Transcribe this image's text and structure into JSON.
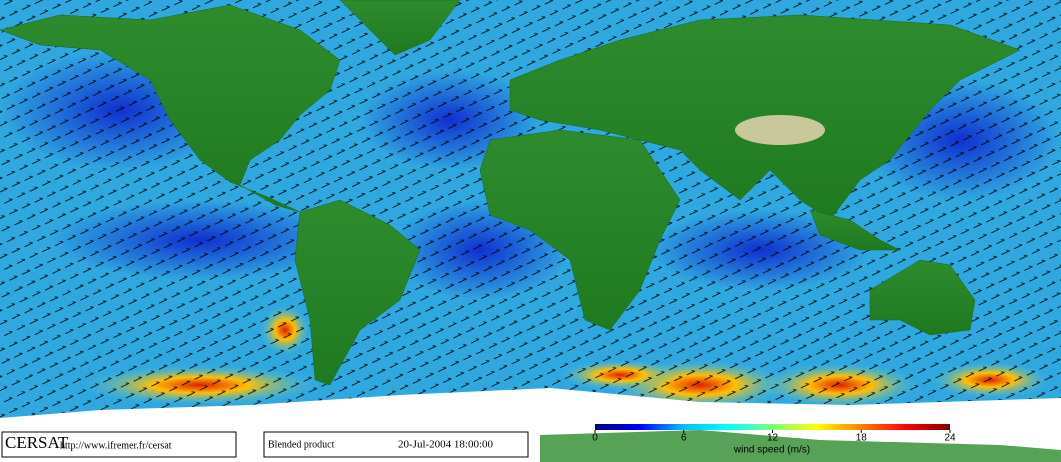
{
  "footer": {
    "logo": "CERSAT",
    "url": "http://www.ifremer.fr/cersat",
    "product": "Blended product",
    "date": "20-Jul-2004 18:00:00"
  },
  "colorbar": {
    "label": "wind speed (m/s)",
    "range": [
      0,
      24
    ],
    "ticks": [
      0,
      6,
      12,
      18,
      24
    ],
    "colors": [
      "#00007f",
      "#0000ff",
      "#00bfff",
      "#00ffff",
      "#7fff7f",
      "#ffff00",
      "#ff7f00",
      "#ff0000",
      "#7f0000"
    ]
  }
}
